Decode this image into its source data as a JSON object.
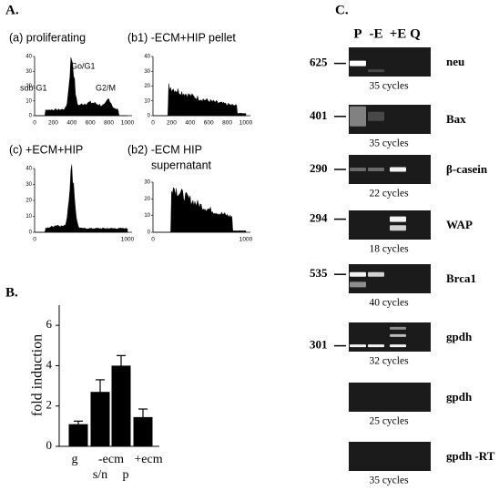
{
  "panel_a": {
    "label": "A.",
    "plots": [
      {
        "title": "(a) proliferating",
        "annotations": [
          "Go/G1",
          "sub-G1",
          "S",
          "G2/M"
        ],
        "yticks": [
          "0",
          "10",
          "20",
          "30",
          "40"
        ],
        "xticks": [
          "0",
          "200",
          "400",
          "600",
          "800",
          "1000"
        ]
      },
      {
        "title": "(b1) -ECM+HIP pellet",
        "annotations": [],
        "yticks": [
          "0",
          "10",
          "20",
          "30",
          "40"
        ],
        "xticks": [
          "0",
          "200",
          "400",
          "600",
          "800",
          "1000"
        ]
      },
      {
        "title": "(c) +ECM+HIP",
        "annotations": [],
        "yticks": [
          "0",
          "10",
          "20",
          "30",
          "40"
        ],
        "xticks": [
          "0",
          "1000"
        ]
      },
      {
        "title": "(b2) -ECM HIP",
        "subtitle": "supernatant",
        "annotations": [],
        "yticks": [
          "0",
          "10",
          "20",
          "30"
        ],
        "xticks": [
          "0",
          "1000"
        ]
      }
    ]
  },
  "panel_b": {
    "label": "B.",
    "type": "bar",
    "ylabel": "fold induction",
    "categories": [
      "g",
      "s/n",
      "p",
      "+ecm"
    ],
    "group_label": "-ecm",
    "values": [
      1.1,
      2.7,
      4.0,
      1.45
    ],
    "errors": [
      0.15,
      0.6,
      0.5,
      0.4
    ],
    "ylim": [
      0,
      7
    ],
    "yticks": [
      0,
      2,
      4,
      6
    ],
    "color": "#000000"
  },
  "panel_c": {
    "label": "C.",
    "lanes": [
      "P",
      "-E",
      "+E",
      "Q"
    ],
    "gels": [
      {
        "size": "625",
        "cycles": "35 cycles",
        "gene": "neu"
      },
      {
        "size": "401",
        "cycles": "35 cycles",
        "gene": "Bax"
      },
      {
        "size": "290",
        "cycles": "22 cycles",
        "gene": "β-casein"
      },
      {
        "size": "294",
        "cycles": "18  cycles",
        "gene": "WAP"
      },
      {
        "size": "535",
        "cycles": "40 cycles",
        "gene": "Brca1"
      },
      {
        "size": "301",
        "cycles": "32 cycles",
        "gene": "gpdh"
      },
      {
        "cycles": "25 cycles",
        "gene": "gpdh"
      },
      {
        "cycles": "35 cycles",
        "gene": "gpdh -RT"
      }
    ]
  }
}
